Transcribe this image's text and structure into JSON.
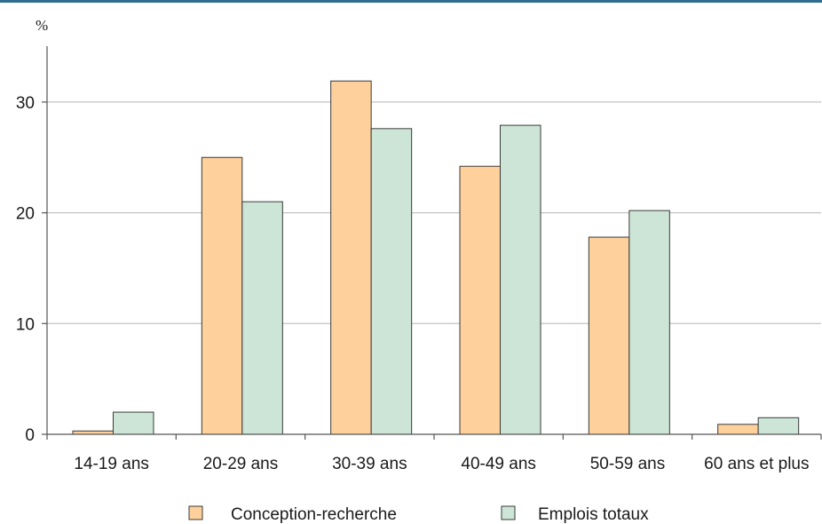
{
  "chart_data": {
    "type": "bar",
    "unit": "%",
    "categories": [
      "14-19 ans",
      "20-29 ans",
      "30-39 ans",
      "40-49 ans",
      "50-59 ans",
      "60 ans et plus"
    ],
    "series": [
      {
        "name": "Conception-recherche",
        "color": "#fdd09c",
        "values": [
          0.3,
          25.0,
          31.9,
          24.2,
          17.8,
          0.9
        ]
      },
      {
        "name": "Emplois totaux",
        "color": "#cce5d7",
        "values": [
          2.0,
          21.0,
          27.6,
          27.9,
          20.2,
          1.5
        ]
      }
    ],
    "ylim": [
      0,
      30
    ],
    "yticks": [
      0,
      10,
      20,
      30
    ],
    "grid": true,
    "legend_position": "bottom"
  }
}
